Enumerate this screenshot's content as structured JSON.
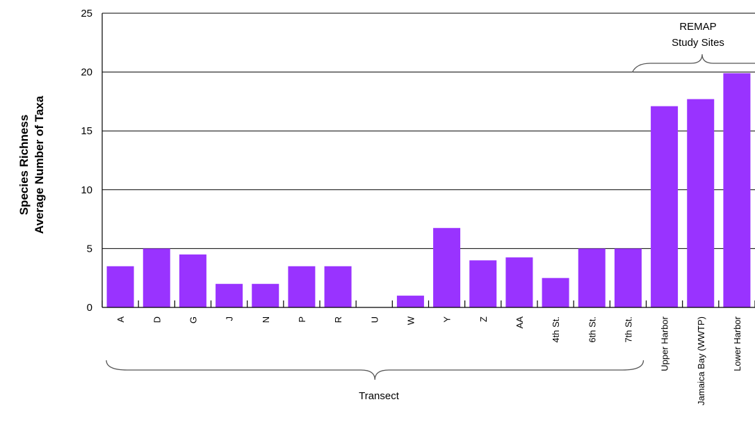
{
  "chart_data": {
    "type": "bar",
    "ylabel_lines": [
      "Species Richness",
      "Average Number of Taxa"
    ],
    "ylim": [
      0,
      25
    ],
    "yticks": [
      0,
      5,
      10,
      15,
      20,
      25
    ],
    "grid": true,
    "bar_color": "#9933ff",
    "categories": [
      "A",
      "D",
      "G",
      "J",
      "N",
      "P",
      "R",
      "U",
      "W",
      "Y",
      "Z",
      "AA",
      "4th St.",
      "6th St.",
      "7th St.",
      "Upper Harbor",
      "Jamaica Bay (WWTP)",
      "Lower Harbor"
    ],
    "values": [
      3.5,
      5.0,
      4.5,
      2.0,
      2.0,
      3.5,
      3.5,
      0,
      1.0,
      6.75,
      4.0,
      4.25,
      2.5,
      5.0,
      5.0,
      17.1,
      17.7,
      19.9
    ],
    "groups": [
      {
        "label": "Transect",
        "from": 0,
        "to": 14,
        "position": "below"
      },
      {
        "label_lines": [
          "REMAP",
          "Study Sites"
        ],
        "from": 15,
        "to": 17,
        "position": "above"
      }
    ]
  }
}
